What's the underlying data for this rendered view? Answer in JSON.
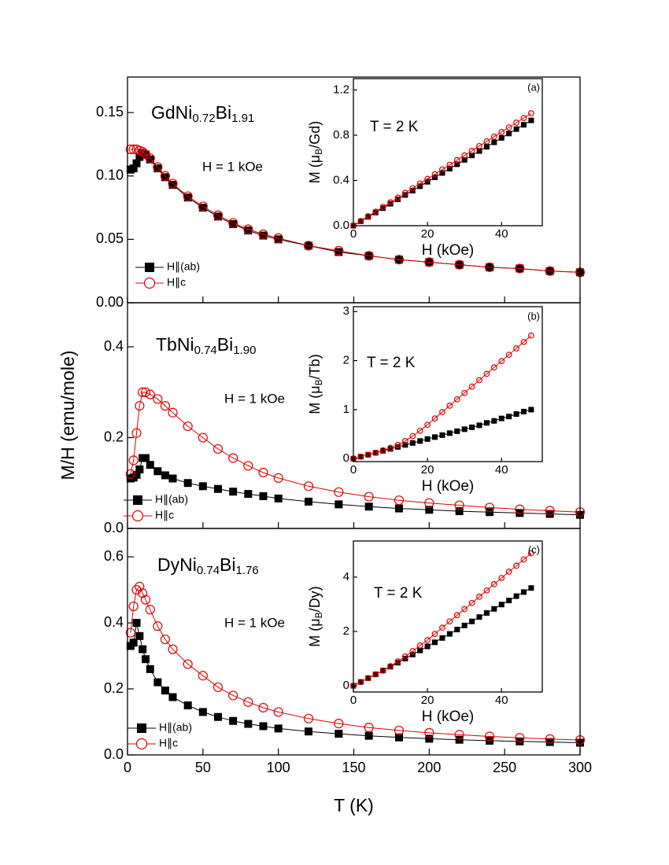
{
  "chart_data": [
    {
      "type": "line",
      "title": [
        "GdNi",
        "0.72",
        "Bi",
        "1.91"
      ],
      "annotations": [
        "H = 1 kOe"
      ],
      "x": [
        2,
        4,
        6,
        8,
        10,
        12,
        15,
        20,
        25,
        30,
        40,
        50,
        60,
        70,
        80,
        90,
        100,
        120,
        140,
        160,
        180,
        200,
        220,
        240,
        260,
        280,
        300
      ],
      "series": [
        {
          "name": "H∥(ab)",
          "color": "#000000",
          "marker": "square",
          "values": [
            0.105,
            0.106,
            0.11,
            0.115,
            0.118,
            0.117,
            0.113,
            0.106,
            0.099,
            0.093,
            0.083,
            0.075,
            0.068,
            0.062,
            0.057,
            0.053,
            0.05,
            0.045,
            0.04,
            0.037,
            0.034,
            0.032,
            0.03,
            0.028,
            0.027,
            0.025,
            0.024
          ]
        },
        {
          "name": "H∥c",
          "color": "#e00000",
          "marker": "circle",
          "values": [
            0.121,
            0.121,
            0.121,
            0.12,
            0.119,
            0.117,
            0.114,
            0.107,
            0.1,
            0.094,
            0.084,
            0.076,
            0.069,
            0.063,
            0.058,
            0.054,
            0.051,
            0.045,
            0.041,
            0.037,
            0.034,
            0.032,
            0.03,
            0.028,
            0.027,
            0.025,
            0.024
          ]
        }
      ],
      "xlim": [
        0,
        300
      ],
      "ylim": [
        0,
        0.178
      ],
      "yticks": [
        {
          "value": 0,
          "label": "0.00"
        },
        {
          "value": 0.05,
          "label": "0.05"
        },
        {
          "value": 0.1,
          "label": "0.10"
        },
        {
          "value": 0.15,
          "label": "0.15"
        }
      ],
      "legend": "lower left"
    },
    {
      "type": "line",
      "title": [
        "TbNi",
        "0.74",
        "Bi",
        "1.90"
      ],
      "annotations": [
        "H = 1 kOe"
      ],
      "ylabel": "M/H (emu/mole)",
      "x": [
        2,
        4,
        6,
        8,
        10,
        12,
        15,
        20,
        25,
        30,
        40,
        50,
        60,
        70,
        80,
        90,
        100,
        120,
        140,
        160,
        180,
        200,
        220,
        240,
        260,
        280,
        300
      ],
      "series": [
        {
          "name": "H∥(ab)",
          "color": "#000000",
          "marker": "square",
          "values": [
            0.11,
            0.112,
            0.118,
            0.13,
            0.155,
            0.155,
            0.14,
            0.126,
            0.117,
            0.11,
            0.1,
            0.093,
            0.087,
            0.081,
            0.076,
            0.071,
            0.066,
            0.059,
            0.053,
            0.048,
            0.044,
            0.041,
            0.038,
            0.036,
            0.034,
            0.032,
            0.03
          ]
        },
        {
          "name": "H∥c",
          "color": "#e00000",
          "marker": "circle",
          "values": [
            0.12,
            0.15,
            0.21,
            0.27,
            0.3,
            0.3,
            0.295,
            0.285,
            0.27,
            0.255,
            0.225,
            0.2,
            0.175,
            0.155,
            0.138,
            0.123,
            0.111,
            0.093,
            0.08,
            0.07,
            0.062,
            0.056,
            0.051,
            0.046,
            0.042,
            0.039,
            0.036
          ]
        }
      ],
      "xlim": [
        0,
        300
      ],
      "ylim": [
        0,
        0.497
      ],
      "yticks": [
        {
          "value": 0,
          "label": "0.0"
        },
        0.2,
        0.4
      ],
      "legend": "lower left"
    },
    {
      "type": "line",
      "title": [
        "DyNi",
        "0.74",
        "Bi",
        "1.76"
      ],
      "annotations": [
        "H = 1 kOe"
      ],
      "xlabel": "T (K)",
      "x": [
        2,
        4,
        6,
        8,
        10,
        12,
        15,
        20,
        25,
        30,
        40,
        50,
        60,
        70,
        80,
        90,
        100,
        120,
        140,
        160,
        180,
        200,
        220,
        240,
        260,
        280,
        300
      ],
      "series": [
        {
          "name": "H∥(ab)",
          "color": "#000000",
          "marker": "square",
          "values": [
            0.33,
            0.34,
            0.4,
            0.36,
            0.32,
            0.29,
            0.26,
            0.22,
            0.195,
            0.175,
            0.15,
            0.13,
            0.115,
            0.103,
            0.094,
            0.087,
            0.08,
            0.071,
            0.064,
            0.058,
            0.053,
            0.049,
            0.046,
            0.043,
            0.041,
            0.039,
            0.037
          ]
        },
        {
          "name": "H∥c",
          "color": "#e00000",
          "marker": "circle",
          "values": [
            0.37,
            0.45,
            0.5,
            0.51,
            0.49,
            0.47,
            0.44,
            0.39,
            0.35,
            0.32,
            0.275,
            0.24,
            0.205,
            0.18,
            0.16,
            0.143,
            0.13,
            0.11,
            0.095,
            0.083,
            0.074,
            0.067,
            0.061,
            0.056,
            0.052,
            0.048,
            0.045
          ]
        }
      ],
      "xlim": [
        0,
        300
      ],
      "ylim": [
        0,
        0.686
      ],
      "xticks": [
        0,
        50,
        100,
        150,
        200,
        250,
        300
      ],
      "yticks": [
        {
          "value": 0,
          "label": "0.0"
        },
        0.2,
        0.4,
        0.6
      ],
      "legend": "lower left"
    },
    {
      "type": "line",
      "annotations": [
        "T = 2 K",
        "(a)"
      ],
      "xlabel": "H (kOe)",
      "ylabel": [
        "M (μ",
        "B",
        "/Gd)"
      ],
      "x": [
        0,
        2,
        4,
        6,
        8,
        10,
        12,
        14,
        16,
        18,
        20,
        22,
        24,
        26,
        28,
        30,
        32,
        34,
        36,
        38,
        40,
        42,
        44,
        46,
        48
      ],
      "series": [
        {
          "color": "#000000",
          "marker": "square",
          "values": [
            0,
            0.039,
            0.078,
            0.116,
            0.155,
            0.194,
            0.233,
            0.272,
            0.31,
            0.349,
            0.388,
            0.427,
            0.466,
            0.504,
            0.543,
            0.582,
            0.621,
            0.66,
            0.698,
            0.737,
            0.776,
            0.815,
            0.854,
            0.892,
            0.931
          ]
        },
        {
          "color": "#e00000",
          "marker": "circle",
          "values": [
            0,
            0.041,
            0.083,
            0.124,
            0.166,
            0.207,
            0.248,
            0.29,
            0.331,
            0.373,
            0.414,
            0.455,
            0.497,
            0.538,
            0.58,
            0.621,
            0.662,
            0.704,
            0.745,
            0.787,
            0.828,
            0.869,
            0.911,
            0.952,
            0.994
          ]
        }
      ],
      "xlim": [
        0,
        51
      ],
      "ylim": [
        0,
        1.3
      ],
      "xticks": [
        0,
        20,
        40
      ],
      "yticks": [
        {
          "value": 0,
          "label": "0.0"
        },
        0.4,
        0.8,
        1.2
      ]
    },
    {
      "type": "line",
      "annotations": [
        "T = 2 K",
        "(b)"
      ],
      "xlabel": "H (kOe)",
      "ylabel": [
        "M (μ",
        "B",
        "/Tb)"
      ],
      "x": [
        0,
        2,
        4,
        6,
        8,
        10,
        12,
        14,
        16,
        18,
        20,
        22,
        24,
        26,
        28,
        30,
        32,
        34,
        36,
        38,
        40,
        42,
        44,
        46,
        48
      ],
      "series": [
        {
          "color": "#000000",
          "marker": "square",
          "values": [
            0,
            0.04,
            0.08,
            0.12,
            0.16,
            0.2,
            0.24,
            0.28,
            0.32,
            0.36,
            0.4,
            0.44,
            0.48,
            0.52,
            0.56,
            0.6,
            0.64,
            0.68,
            0.73,
            0.77,
            0.82,
            0.86,
            0.91,
            0.96,
            1.0
          ]
        },
        {
          "color": "#e00000",
          "marker": "circle",
          "values": [
            0,
            0.04,
            0.08,
            0.12,
            0.17,
            0.22,
            0.28,
            0.36,
            0.46,
            0.57,
            0.69,
            0.82,
            0.95,
            1.08,
            1.21,
            1.34,
            1.47,
            1.6,
            1.73,
            1.86,
            1.99,
            2.12,
            2.25,
            2.38,
            2.51
          ]
        }
      ],
      "xlim": [
        0,
        51
      ],
      "ylim": [
        -0.06,
        3.1
      ],
      "xticks": [
        0,
        20,
        40
      ],
      "yticks": [
        0,
        1,
        2,
        3
      ]
    },
    {
      "type": "line",
      "annotations": [
        "T = 2 K",
        "(c)"
      ],
      "xlabel": "H (kOe)",
      "ylabel": [
        "M (μ",
        "B",
        "/Dy)"
      ],
      "x": [
        0,
        2,
        4,
        6,
        8,
        10,
        12,
        14,
        16,
        18,
        20,
        22,
        24,
        26,
        28,
        30,
        32,
        34,
        36,
        38,
        40,
        42,
        44,
        46,
        48
      ],
      "series": [
        {
          "color": "#000000",
          "marker": "square",
          "values": [
            0,
            0.14,
            0.28,
            0.42,
            0.56,
            0.7,
            0.85,
            1.0,
            1.15,
            1.3,
            1.45,
            1.6,
            1.76,
            1.91,
            2.07,
            2.22,
            2.37,
            2.53,
            2.68,
            2.83,
            2.99,
            3.14,
            3.3,
            3.45,
            3.6
          ]
        },
        {
          "color": "#e00000",
          "marker": "circle",
          "values": [
            0,
            0.14,
            0.28,
            0.42,
            0.56,
            0.72,
            0.9,
            1.08,
            1.28,
            1.48,
            1.68,
            1.91,
            2.14,
            2.37,
            2.6,
            2.82,
            3.05,
            3.28,
            3.51,
            3.74,
            3.97,
            4.2,
            4.42,
            4.65,
            4.88
          ]
        }
      ],
      "xlim": [
        0,
        51
      ],
      "ylim": [
        -0.23,
        5.33
      ],
      "xticks": [
        0,
        20,
        40
      ],
      "yticks": [
        0,
        2,
        4
      ]
    }
  ]
}
